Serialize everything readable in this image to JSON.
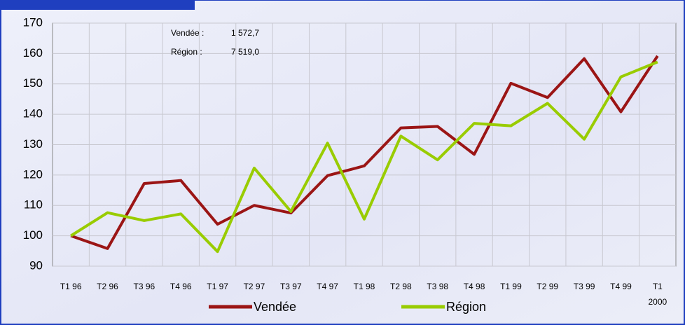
{
  "chart_data": {
    "type": "line",
    "categories": [
      "T1 96",
      "T2 96",
      "T3 96",
      "T4 96",
      "T1 97",
      "T2 97",
      "T3 97",
      "T4 97",
      "T1 98",
      "T2 98",
      "T3 98",
      "T4 98",
      "T1 99",
      "T2 99",
      "T3 99",
      "T4 99",
      "T1 2000"
    ],
    "series": [
      {
        "name": "Vendée",
        "color": "#9b1515",
        "values": [
          100,
          95.8,
          117.2,
          118.2,
          103.8,
          110,
          107.5,
          119.8,
          123,
          135.5,
          136,
          126.8,
          150.2,
          145.5,
          158.3,
          140.8,
          159.2
        ]
      },
      {
        "name": "Région",
        "color": "#99cc00",
        "values": [
          100,
          107.6,
          105,
          107.2,
          94.8,
          122.3,
          108,
          130.5,
          105.5,
          132.8,
          125,
          137,
          136.2,
          143.6,
          131.8,
          152.3,
          157.2
        ]
      }
    ],
    "ylim": [
      90,
      170
    ],
    "yticks": [
      90,
      100,
      110,
      120,
      130,
      140,
      150,
      160,
      170
    ],
    "grid": true,
    "annotations": [
      {
        "label": "Vendée :",
        "value": "1 572,7"
      },
      {
        "label": "Région :",
        "value": "7 519,0"
      }
    ]
  }
}
